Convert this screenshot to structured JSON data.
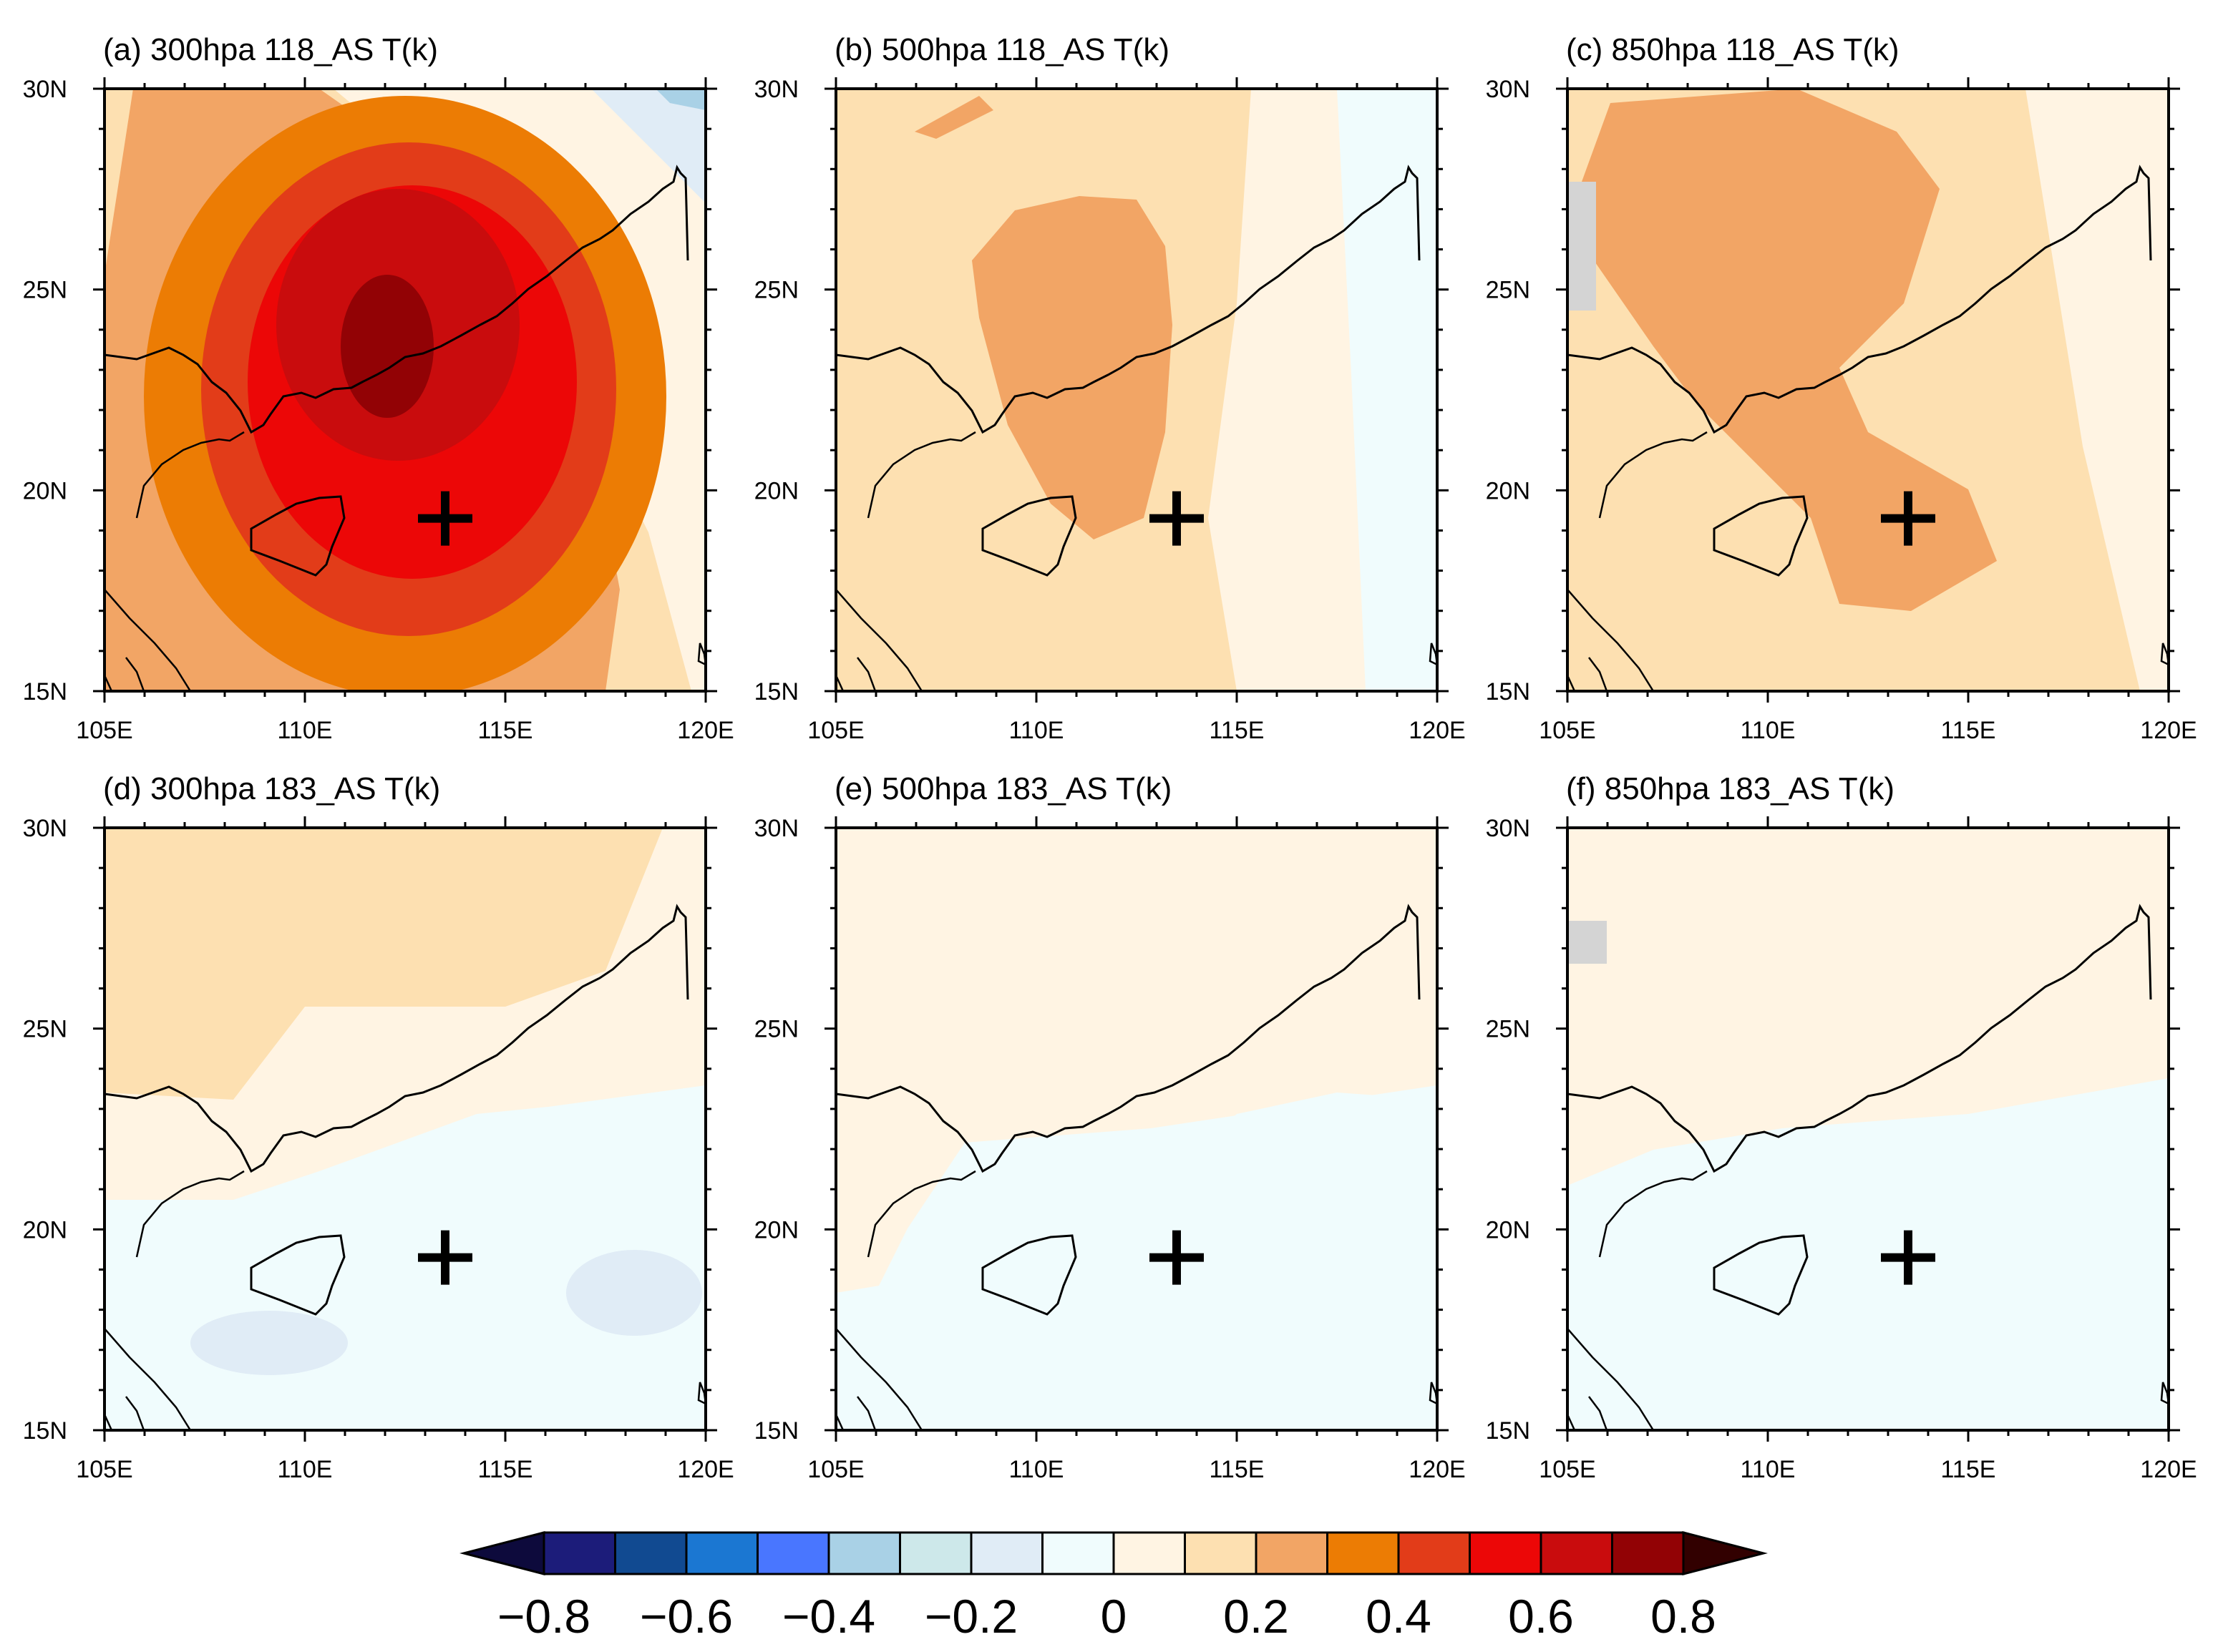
{
  "figure": {
    "panels": [
      {
        "id": "a",
        "title": "(a) 300hpa 118_AS  T(k)",
        "level": "300hpa",
        "case": "118_AS",
        "variable": "T(k)"
      },
      {
        "id": "b",
        "title": "(b) 500hpa 118_AS  T(k)",
        "level": "500hpa",
        "case": "118_AS",
        "variable": "T(k)"
      },
      {
        "id": "c",
        "title": "(c) 850hpa 118_AS  T(k)",
        "level": "850hpa",
        "case": "118_AS",
        "variable": "T(k)"
      },
      {
        "id": "d",
        "title": "(d) 300hpa 183_AS  T(k)",
        "level": "300hpa",
        "case": "183_AS",
        "variable": "T(k)"
      },
      {
        "id": "e",
        "title": "(e) 500hpa 183_AS  T(k)",
        "level": "500hpa",
        "case": "183_AS",
        "variable": "T(k)"
      },
      {
        "id": "f",
        "title": "(f) 850hpa 183_AS  T(k)",
        "level": "850hpa",
        "case": "183_AS",
        "variable": "T(k)"
      }
    ],
    "lon_ticks": [
      "105E",
      "110E",
      "115E",
      "120E"
    ],
    "lat_ticks": [
      "30N",
      "25N",
      "20N",
      "15N"
    ],
    "lon_range": [
      105,
      120
    ],
    "lat_range": [
      15,
      30
    ],
    "marker": {
      "symbol": "+",
      "lon": 113.5,
      "lat": 19.3
    },
    "colorbar": {
      "levels": [
        -0.8,
        -0.7,
        -0.6,
        -0.5,
        -0.4,
        -0.3,
        -0.2,
        -0.1,
        0,
        0.1,
        0.2,
        0.3,
        0.4,
        0.5,
        0.6,
        0.7,
        0.8
      ],
      "colors": [
        "#0d0a3c",
        "#1c1c7a",
        "#114a91",
        "#1b77d2",
        "#4976ff",
        "#a9d1e6",
        "#cde8ea",
        "#e0ecf6",
        "#f0fcfd",
        "#fff4e3",
        "#fde0b1",
        "#f2a565",
        "#ec7c04",
        "#e23c19",
        "#ec0707",
        "#c90c0d",
        "#920205",
        "#320000"
      ],
      "tick_labels": [
        "−0.8",
        "−0.6",
        "−0.4",
        "−0.2",
        "0",
        "0.2",
        "0.4",
        "0.6",
        "0.8"
      ],
      "tick_values": [
        -0.8,
        -0.6,
        -0.4,
        -0.2,
        0,
        0.2,
        0.4,
        0.6,
        0.8
      ]
    },
    "colors": {
      "land_missing": "#d4d4d4"
    }
  }
}
